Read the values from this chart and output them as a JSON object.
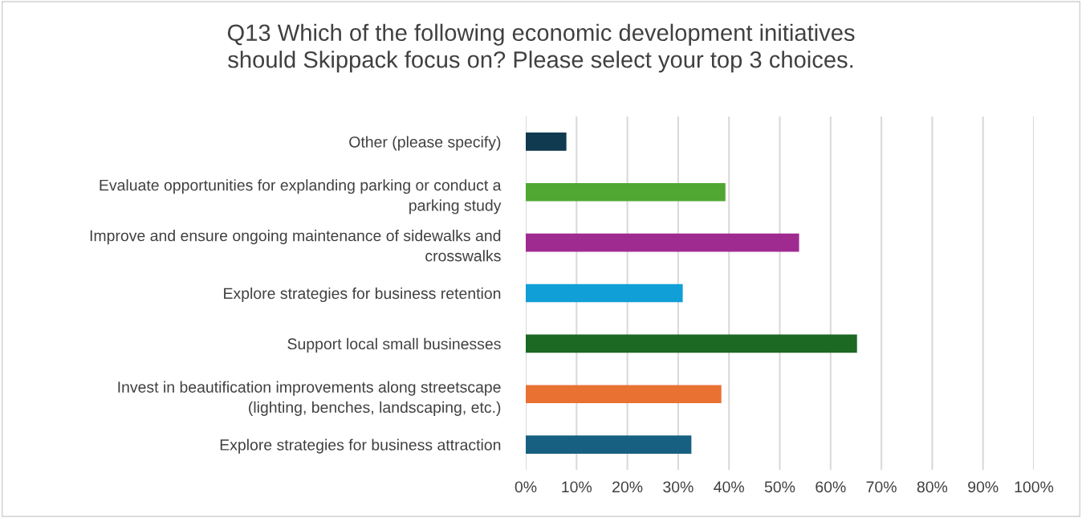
{
  "chart_data": {
    "type": "bar",
    "orientation": "horizontal",
    "title": "Q13 Which of the following economic development initiatives\nshould Skippack focus on? Please select your top 3 choices.",
    "categories": [
      "Other (please specify)",
      "Evaluate opportunities for explanding parking or conduct a\nparking study",
      "Improve and ensure ongoing maintenance of sidewalks and\ncrosswalks",
      "Explore strategies for business retention",
      "Support local small businesses",
      "Invest in beautification improvements along streetscape\n(lighting, benches, landscaping, etc.)",
      "Explore strategies for business attraction"
    ],
    "values": [
      8.0,
      39.3,
      53.8,
      30.9,
      65.2,
      38.5,
      32.6
    ],
    "colors": [
      "#0f3a50",
      "#50a732",
      "#9f2b91",
      "#109fd6",
      "#1b6923",
      "#e97132",
      "#176082"
    ],
    "xlim": [
      0,
      100
    ],
    "xticks": [
      {
        "value": 0,
        "label": "0%"
      },
      {
        "value": 10,
        "label": "10%"
      },
      {
        "value": 20,
        "label": "20%"
      },
      {
        "value": 30,
        "label": "30%"
      },
      {
        "value": 40,
        "label": "40%"
      },
      {
        "value": 50,
        "label": "50%"
      },
      {
        "value": 60,
        "label": "60%"
      },
      {
        "value": 70,
        "label": "70%"
      },
      {
        "value": 80,
        "label": "80%"
      },
      {
        "value": 90,
        "label": "90%"
      },
      {
        "value": 100,
        "label": "100%"
      }
    ],
    "grid": "x",
    "legend": false
  }
}
